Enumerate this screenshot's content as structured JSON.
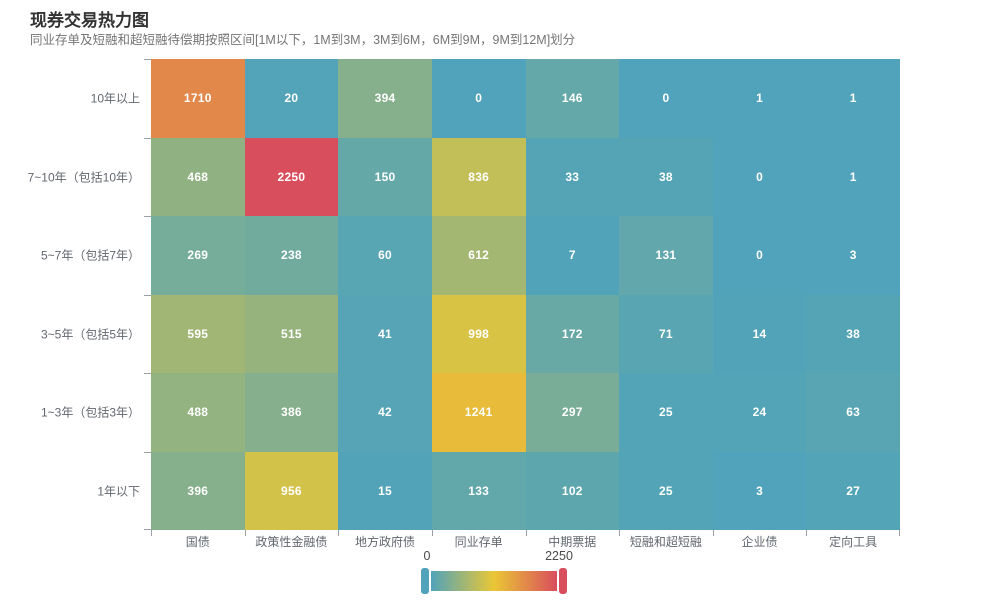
{
  "title": "现券交易热力图",
  "subtitle": "同业存单及短融和超短融待偿期按照区间[1M以下，1M到3M，3M到6M，6M到9M，9M到12M]划分",
  "chart_data": {
    "type": "heatmap",
    "title": "现券交易热力图",
    "subtitle": "同业存单及短融和超短融待偿期按照区间[1M以下，1M到3M，3M到6M，6M到9M，9M到12M]划分",
    "x_categories": [
      "国债",
      "政策性金融债",
      "地方政府债",
      "同业存单",
      "中期票据",
      "短融和超短融",
      "企业债",
      "定向工具"
    ],
    "y_categories": [
      "10年以上",
      "7~10年（包括10年）",
      "5~7年（包括7年）",
      "3~5年（包括5年）",
      "1~3年（包括3年）",
      "1年以下"
    ],
    "rows": [
      [
        1710,
        20,
        394,
        0,
        146,
        0,
        1,
        1
      ],
      [
        468,
        2250,
        150,
        836,
        33,
        38,
        0,
        1
      ],
      [
        269,
        238,
        60,
        612,
        7,
        131,
        0,
        3
      ],
      [
        595,
        515,
        41,
        998,
        172,
        71,
        14,
        38
      ],
      [
        488,
        386,
        42,
        1241,
        297,
        25,
        24,
        63
      ],
      [
        396,
        956,
        15,
        133,
        102,
        25,
        3,
        27
      ]
    ],
    "grid": false,
    "legend_position": "bottom-center",
    "visual_map": {
      "min": 0,
      "max": 2250,
      "min_label": "0",
      "max_label": "2250",
      "colors": [
        "#50a3ba",
        "#eac736",
        "#d94e5d"
      ]
    },
    "cell_label_color": "#ffffff",
    "axis_label_color": "#62676e"
  }
}
